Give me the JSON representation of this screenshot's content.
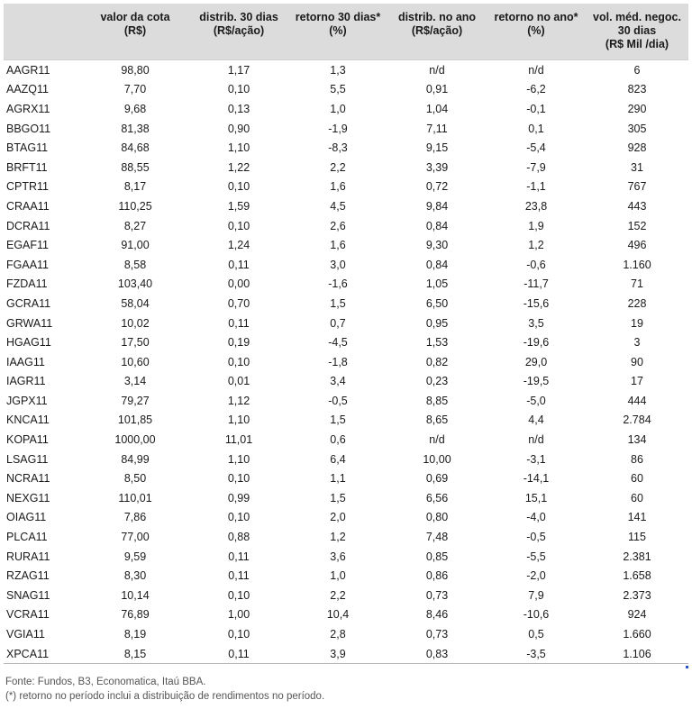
{
  "headers": [
    "",
    "valor da cota\n(R$)",
    "distrib. 30 dias\n(R$/ação)",
    "retorno 30 dias*\n(%)",
    "distrib. no ano\n(R$/ação)",
    "retorno no ano*\n(%)",
    "vol. méd. negoc.\n30 dias\n(R$ Mil /dia)"
  ],
  "rows": [
    [
      "AAGR11",
      "98,80",
      "1,17",
      "1,3",
      "n/d",
      "n/d",
      "6"
    ],
    [
      "AAZQ11",
      "7,70",
      "0,10",
      "5,5",
      "0,91",
      "-6,2",
      "823"
    ],
    [
      "AGRX11",
      "9,68",
      "0,13",
      "1,0",
      "1,04",
      "-0,1",
      "290"
    ],
    [
      "BBGO11",
      "81,38",
      "0,90",
      "-1,9",
      "7,11",
      "0,1",
      "305"
    ],
    [
      "BTAG11",
      "84,68",
      "1,10",
      "-8,3",
      "9,15",
      "-5,4",
      "928"
    ],
    [
      "BRFT11",
      "88,55",
      "1,22",
      "2,2",
      "3,39",
      "-7,9",
      "31"
    ],
    [
      "CPTR11",
      "8,17",
      "0,10",
      "1,6",
      "0,72",
      "-1,1",
      "767"
    ],
    [
      "CRAA11",
      "110,25",
      "1,59",
      "4,5",
      "9,84",
      "23,8",
      "443"
    ],
    [
      "DCRA11",
      "8,27",
      "0,10",
      "2,6",
      "0,84",
      "1,9",
      "152"
    ],
    [
      "EGAF11",
      "91,00",
      "1,24",
      "1,6",
      "9,30",
      "1,2",
      "496"
    ],
    [
      "FGAA11",
      "8,58",
      "0,11",
      "3,0",
      "0,84",
      "-0,6",
      "1.160"
    ],
    [
      "FZDA11",
      "103,40",
      "0,00",
      "-1,6",
      "1,05",
      "-11,7",
      "71"
    ],
    [
      "GCRA11",
      "58,04",
      "0,70",
      "1,5",
      "6,50",
      "-15,6",
      "228"
    ],
    [
      "GRWA11",
      "10,02",
      "0,11",
      "0,7",
      "0,95",
      "3,5",
      "19"
    ],
    [
      "HGAG11",
      "17,50",
      "0,19",
      "-4,5",
      "1,53",
      "-19,6",
      "3"
    ],
    [
      "IAAG11",
      "10,60",
      "0,10",
      "-1,8",
      "0,82",
      "29,0",
      "90"
    ],
    [
      "IAGR11",
      "3,14",
      "0,01",
      "3,4",
      "0,23",
      "-19,5",
      "17"
    ],
    [
      "JGPX11",
      "79,27",
      "1,12",
      "-0,5",
      "8,85",
      "-5,0",
      "444"
    ],
    [
      "KNCA11",
      "101,85",
      "1,10",
      "1,5",
      "8,65",
      "4,4",
      "2.784"
    ],
    [
      "KOPA11",
      "1000,00",
      "11,01",
      "0,6",
      "n/d",
      "n/d",
      "134"
    ],
    [
      "LSAG11",
      "84,99",
      "1,10",
      "6,4",
      "10,00",
      "-3,1",
      "86"
    ],
    [
      "NCRA11",
      "8,50",
      "0,10",
      "1,1",
      "0,69",
      "-14,1",
      "60"
    ],
    [
      "NEXG11",
      "110,01",
      "0,99",
      "1,5",
      "6,56",
      "15,1",
      "60"
    ],
    [
      "OIAG11",
      "7,86",
      "0,10",
      "2,0",
      "0,80",
      "-4,0",
      "141"
    ],
    [
      "PLCA11",
      "77,00",
      "0,88",
      "1,2",
      "7,48",
      "-0,5",
      "115"
    ],
    [
      "RURA11",
      "9,59",
      "0,11",
      "3,6",
      "0,85",
      "-5,5",
      "2.381"
    ],
    [
      "RZAG11",
      "8,30",
      "0,11",
      "1,0",
      "0,86",
      "-2,0",
      "1.658"
    ],
    [
      "SNAG11",
      "10,14",
      "0,10",
      "2,2",
      "0,73",
      "7,9",
      "2.373"
    ],
    [
      "VCRA11",
      "76,89",
      "1,00",
      "10,4",
      "8,46",
      "-10,6",
      "924"
    ],
    [
      "VGIA11",
      "8,19",
      "0,10",
      "2,8",
      "0,73",
      "0,5",
      "1.660"
    ],
    [
      "XPCA11",
      "8,15",
      "0,11",
      "3,9",
      "0,83",
      "-3,5",
      "1.106"
    ]
  ],
  "footer": {
    "source": "Fonte: Fundos, B3, Economatica, Itaú BBA.",
    "note": "(*) retorno no período inclui a distribuição de rendimentos no período."
  }
}
